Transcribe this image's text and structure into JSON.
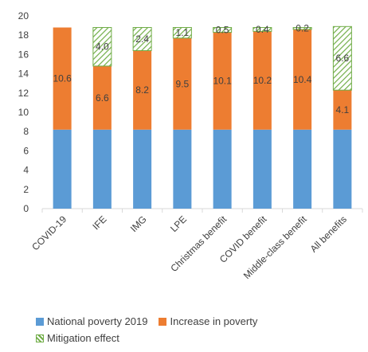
{
  "chart_data": {
    "type": "bar",
    "stacked": true,
    "title": "",
    "xlabel": "",
    "ylabel": "",
    "ylim": [
      0,
      20
    ],
    "yticks": [
      0,
      2,
      4,
      6,
      8,
      10,
      12,
      14,
      16,
      18,
      20
    ],
    "grid": false,
    "legend_position": "bottom",
    "categories": [
      "COVID-19",
      "IFE",
      "IMG",
      "LPE",
      "Christmas benefit",
      "COVID benefit",
      "Middle-class benefit",
      "All benefits"
    ],
    "series": [
      {
        "name": "National poverty 2019",
        "color": "#5b9bd5",
        "pattern": "solid",
        "values": [
          8.2,
          8.2,
          8.2,
          8.2,
          8.2,
          8.2,
          8.2,
          8.2
        ],
        "labels": [
          "",
          "",
          "",
          "",
          "",
          "",
          "",
          ""
        ]
      },
      {
        "name": "Increase in poverty",
        "color": "#ed7d31",
        "pattern": "solid",
        "values": [
          10.6,
          6.6,
          8.2,
          9.5,
          10.1,
          10.2,
          10.4,
          4.1
        ],
        "labels": [
          "10.6",
          "6.6",
          "8.2",
          "9.5",
          "10.1",
          "10.2",
          "10.4",
          "4.1"
        ]
      },
      {
        "name": "Mitigation effect",
        "color": "#70ad47",
        "pattern": "diagonal-hatch",
        "values": [
          0,
          4.0,
          2.4,
          1.1,
          0.5,
          0.4,
          0.2,
          6.6
        ],
        "labels": [
          "",
          "4.0",
          "2.4",
          "1.1",
          "0.5",
          "0.4",
          "0.2",
          "6.6"
        ]
      }
    ]
  }
}
